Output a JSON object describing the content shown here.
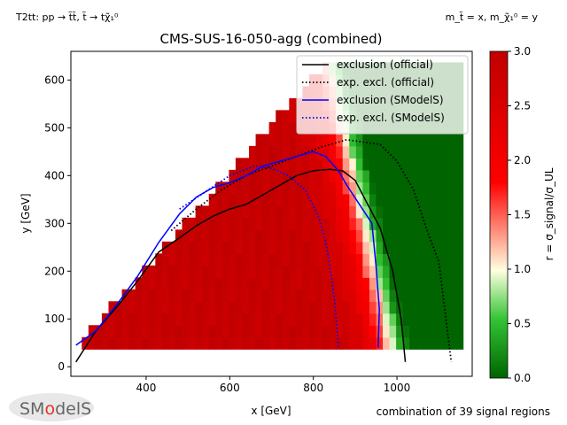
{
  "header": {
    "process_label": "T2tt: pp → t̃t̃, t̃ → tχ̃₁⁰",
    "mass_label": "m_t̃ = x, m_χ̃₁⁰ = y"
  },
  "chart_data": {
    "type": "heatmap",
    "title": "CMS-SUS-16-050-agg (combined)",
    "xlabel": "x [GeV]",
    "ylabel": "y [GeV]",
    "xlim": [
      220,
      1180
    ],
    "ylim": [
      -20,
      660
    ],
    "xticks": [
      400,
      600,
      800,
      1000
    ],
    "yticks": [
      0,
      100,
      200,
      300,
      400,
      500,
      600
    ],
    "grid": false,
    "colorbar": {
      "label": "r = σ_signal/σ_UL",
      "range": [
        0.0,
        3.0
      ],
      "ticks": [
        "0.0",
        "0.5",
        "1.0",
        "1.5",
        "2.0",
        "2.5",
        "3.0"
      ],
      "colors": [
        "#006400",
        "#ffffe0",
        "#c00000"
      ]
    },
    "heatmap": {
      "cell_width_gev": 16,
      "cell_height_gev": 25,
      "x_start_gev": 230,
      "x_end_gev": 1150,
      "y_start_gev": 37,
      "y_end_gev": 630,
      "upper_diagonal_offset_gev": 185,
      "upper_diagonal_max_gev": 630,
      "r_saturation_center_gev": 670,
      "r_boundary_center_gev": 940,
      "r_boundary_width_gev": 70
    },
    "series": [
      {
        "name": "exclusion (official)",
        "color": "#000000",
        "style": "solid",
        "x": [
          232,
          280,
          330,
          380,
          430,
          480,
          520,
          560,
          600,
          640,
          680,
          720,
          760,
          800,
          840,
          870,
          900,
          930,
          960,
          990,
          1010,
          1020
        ],
        "y": [
          10,
          75,
          125,
          180,
          240,
          270,
          295,
          315,
          330,
          340,
          360,
          380,
          400,
          410,
          413,
          410,
          390,
          340,
          290,
          200,
          100,
          10
        ]
      },
      {
        "name": "exp. excl. (official)",
        "color": "#000000",
        "style": "dotted",
        "x": [
          460,
          520,
          580,
          640,
          700,
          760,
          820,
          880,
          920,
          960,
          1000,
          1040,
          1070,
          1100,
          1110,
          1120,
          1130
        ],
        "y": [
          285,
          330,
          370,
          400,
          420,
          440,
          460,
          475,
          470,
          465,
          430,
          370,
          290,
          220,
          150,
          80,
          10
        ]
      },
      {
        "name": "exclusion (SModelS)",
        "color": "#0000ff",
        "style": "solid",
        "x": [
          232,
          280,
          330,
          380,
          430,
          480,
          520,
          560,
          600,
          640,
          680,
          720,
          760,
          800,
          830,
          860,
          880,
          910,
          940,
          950,
          958,
          955
        ],
        "y": [
          45,
          75,
          130,
          190,
          260,
          320,
          355,
          375,
          385,
          400,
          420,
          430,
          440,
          450,
          440,
          410,
          380,
          340,
          300,
          210,
          120,
          40
        ]
      },
      {
        "name": "exp. excl. (SModelS)",
        "color": "#0000ff",
        "style": "dotted",
        "x": [
          480,
          540,
          600,
          660,
          700,
          740,
          780,
          810,
          830,
          845,
          855,
          860
        ],
        "y": [
          330,
          365,
          400,
          420,
          415,
          400,
          370,
          320,
          260,
          180,
          100,
          40
        ]
      }
    ],
    "legend_position": "top-right",
    "annotations": {
      "footer": "combination of 39 signal regions",
      "logo": "SModelS"
    }
  }
}
